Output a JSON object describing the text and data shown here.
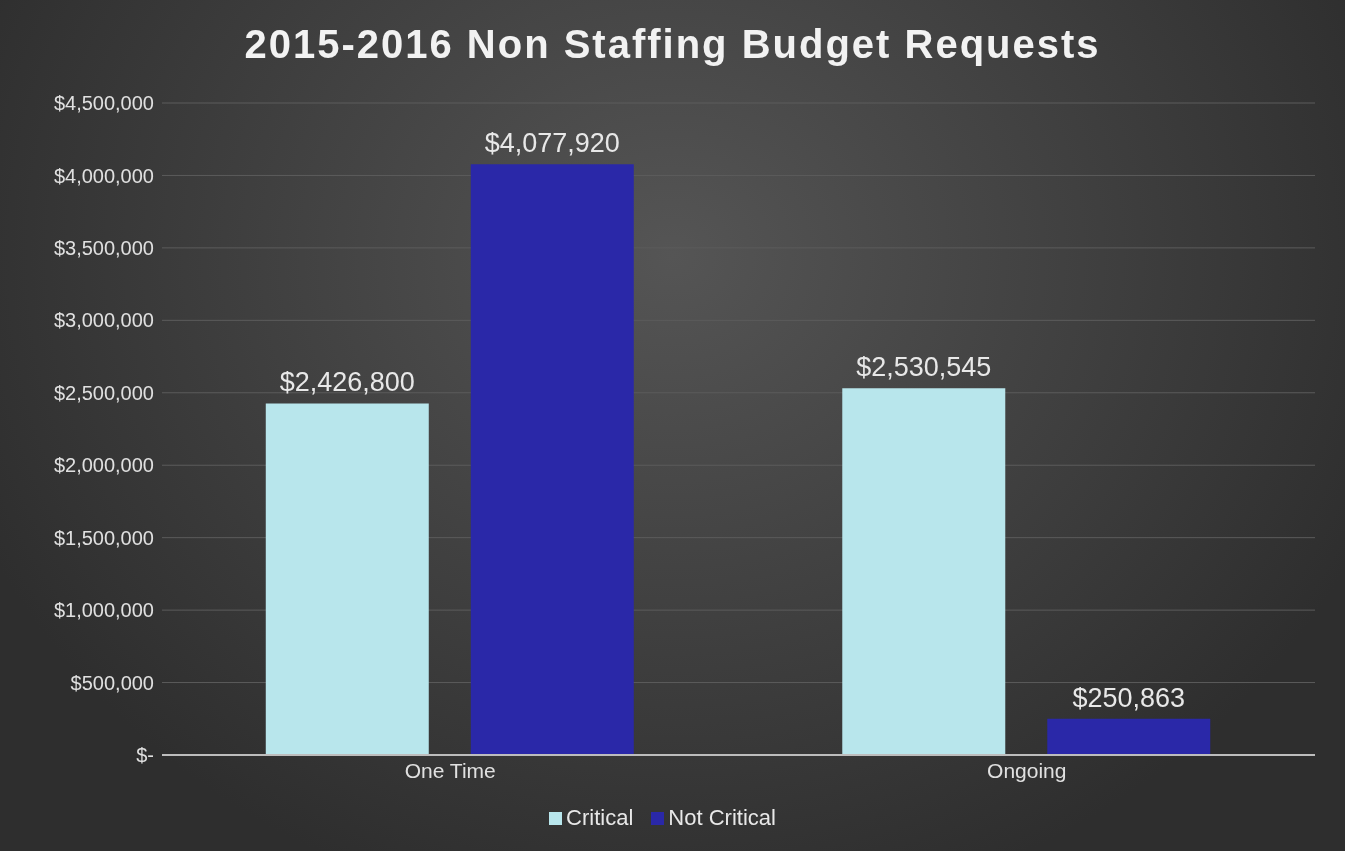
{
  "chart_data": {
    "type": "bar",
    "title": "2015-2016 Non Staffing Budget Requests",
    "categories": [
      "One Time",
      "Ongoing"
    ],
    "series": [
      {
        "name": "Critical",
        "color": "#b8e6ec",
        "values": [
          2426800,
          2530545
        ],
        "value_labels": [
          "$2,426,800",
          "$2,530,545"
        ]
      },
      {
        "name": "Not Critical",
        "color": "#2a28a8",
        "values": [
          4077920,
          250863
        ],
        "value_labels": [
          "$4,077,920",
          "$250,863"
        ]
      }
    ],
    "ylim": [
      0,
      4500000
    ],
    "yticks": [
      {
        "value": 0,
        "label": "$-"
      },
      {
        "value": 500000,
        "label": "$500,000"
      },
      {
        "value": 1000000,
        "label": "$1,000,000"
      },
      {
        "value": 1500000,
        "label": "$1,500,000"
      },
      {
        "value": 2000000,
        "label": "$2,000,000"
      },
      {
        "value": 2500000,
        "label": "$2,500,000"
      },
      {
        "value": 3000000,
        "label": "$3,000,000"
      },
      {
        "value": 3500000,
        "label": "$3,500,000"
      },
      {
        "value": 4000000,
        "label": "$4,000,000"
      },
      {
        "value": 4500000,
        "label": "$4,500,000"
      }
    ],
    "grid": "y",
    "legend": "bottom"
  }
}
